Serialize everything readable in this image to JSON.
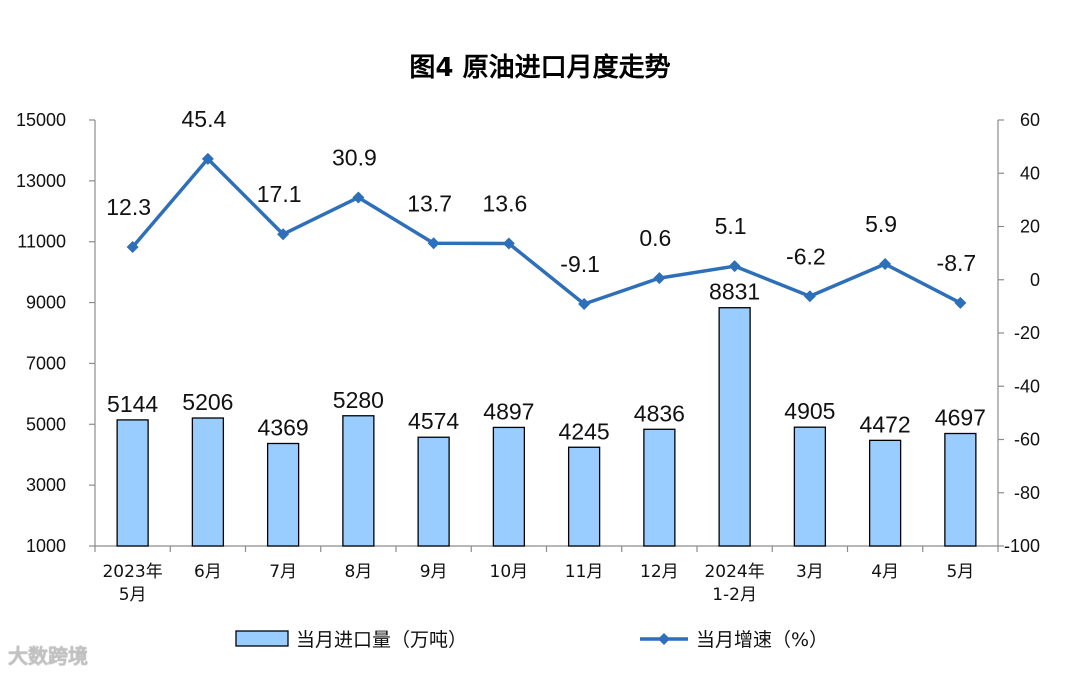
{
  "chart_data": {
    "type": "bar+line",
    "title": "图4 原油进口月度走势",
    "categories": [
      [
        "2023年",
        "5月"
      ],
      [
        "6月"
      ],
      [
        "7月"
      ],
      [
        "8月"
      ],
      [
        "9月"
      ],
      [
        "10月"
      ],
      [
        "11月"
      ],
      [
        "12月"
      ],
      [
        "2024年",
        "1-2月"
      ],
      [
        "3月"
      ],
      [
        "4月"
      ],
      [
        "5月"
      ]
    ],
    "series": [
      {
        "name": "当月进口量（万吨）",
        "type": "bar",
        "axis": "left",
        "values": [
          5144,
          5206,
          4369,
          5280,
          4574,
          4897,
          4245,
          4836,
          8831,
          4905,
          4472,
          4697
        ],
        "labels": [
          "5144",
          "5206",
          "4369",
          "5280",
          "4574",
          "4897",
          "4245",
          "4836",
          "8831",
          "4905",
          "4472",
          "4697"
        ]
      },
      {
        "name": "当月增速（%）",
        "type": "line",
        "axis": "right",
        "values": [
          12.3,
          45.4,
          17.1,
          30.9,
          13.7,
          13.6,
          -9.1,
          0.6,
          5.1,
          -6.2,
          5.9,
          -8.7
        ],
        "labels": [
          "12.3",
          "45.4",
          "17.1",
          "30.9",
          "13.7",
          "13.6",
          "-9.1",
          "0.6",
          "5.1",
          "-6.2",
          "5.9",
          "-8.7"
        ]
      }
    ],
    "y_left": {
      "range": [
        1000,
        15000
      ],
      "ticks": [
        "1000",
        "3000",
        "5000",
        "7000",
        "9000",
        "11000",
        "13000",
        "15000"
      ]
    },
    "y_right": {
      "range": [
        -100,
        60
      ],
      "ticks": [
        "-100",
        "-80",
        "-60",
        "-40",
        "-20",
        "0",
        "20",
        "40",
        "60"
      ]
    },
    "legend_position": "bottom",
    "grid": false,
    "colors": {
      "bar_fill": "#99ccff",
      "bar_stroke": "#000000",
      "line": "#2e6fba",
      "axis": "#8c8c8c"
    }
  },
  "watermark": "大数跨境"
}
